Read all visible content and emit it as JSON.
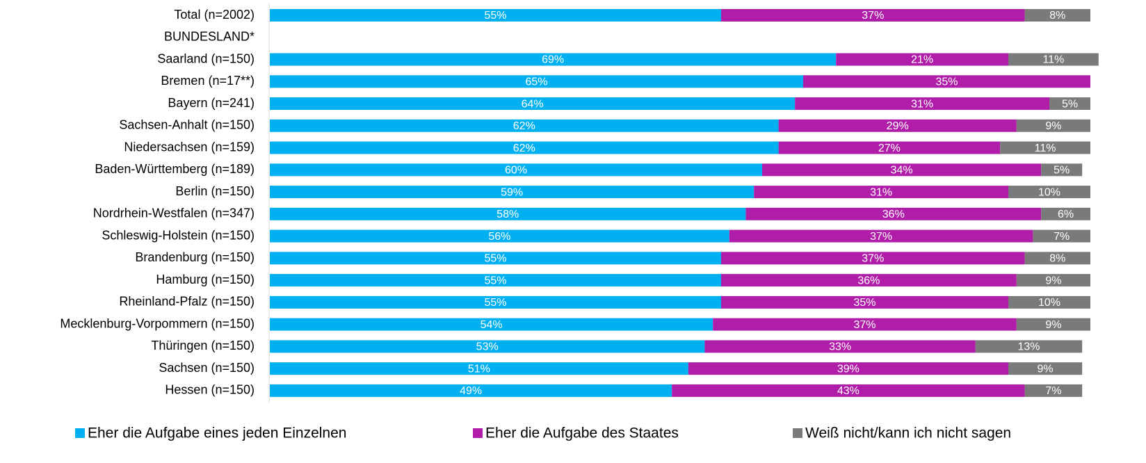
{
  "chart_data": {
    "type": "stacked-bar-horizontal",
    "categories": [
      "Total (n=2002)",
      "BUNDESLAND*",
      "Saarland (n=150)",
      "Bremen (n=17**)",
      "Bayern (n=241)",
      "Sachsen-Anhalt (n=150)",
      "Niedersachsen (n=159)",
      "Baden-Württemberg (n=189)",
      "Berlin (n=150)",
      "Nordrhein-Westfalen (n=347)",
      "Schleswig-Holstein (n=150)",
      "Brandenburg (n=150)",
      "Hamburg (n=150)",
      "Rheinland-Pfalz (n=150)",
      "Mecklenburg-Vorpommern (n=150)",
      "Thüringen (n=150)",
      "Sachsen (n=150)",
      "Hessen (n=150)"
    ],
    "xlim": [
      0,
      100
    ],
    "legend": "bottom",
    "series": [
      {
        "name": "Eher die Aufgabe eines jeden Einzelnen",
        "color": "#00b0f0",
        "values": [
          55,
          null,
          69,
          65,
          64,
          62,
          62,
          60,
          59,
          58,
          56,
          55,
          55,
          55,
          54,
          53,
          51,
          49
        ],
        "value_labels": [
          "55%",
          null,
          "69%",
          "65%",
          "64%",
          "62%",
          "62%",
          "60%",
          "59%",
          "58%",
          "56%",
          "55%",
          "55%",
          "55%",
          "54%",
          "53%",
          "51%",
          "49%"
        ]
      },
      {
        "name": "Eher die Aufgabe des Staates",
        "color": "#b01ea9",
        "values": [
          37,
          null,
          21,
          35,
          31,
          29,
          27,
          34,
          31,
          36,
          37,
          37,
          36,
          35,
          37,
          33,
          39,
          43
        ],
        "value_labels": [
          "37%",
          null,
          "21%",
          "35%",
          "31%",
          "29%",
          "27%",
          "34%",
          "31%",
          "36%",
          "37%",
          "37%",
          "36%",
          "35%",
          "37%",
          "33%",
          "39%",
          "43%"
        ]
      },
      {
        "name": "Weiß nicht/kann ich nicht sagen",
        "color": "#7a7a7a",
        "values": [
          8,
          null,
          11,
          null,
          5,
          9,
          11,
          5,
          10,
          6,
          7,
          8,
          9,
          10,
          9,
          13,
          9,
          7
        ],
        "value_labels": [
          "8%",
          null,
          "11%",
          null,
          "5%",
          "9%",
          "11%",
          "5%",
          "10%",
          "6%",
          "7%",
          "8%",
          "9%",
          "10%",
          "9%",
          "13%",
          "9%",
          "7%"
        ]
      }
    ]
  }
}
